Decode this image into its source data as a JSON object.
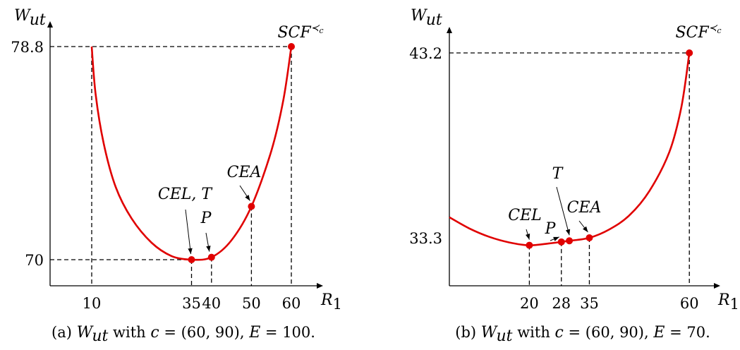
{
  "chart_data": [
    {
      "type": "line",
      "caption": "(a) W_ut with c = (60, 90), E = 100.",
      "ylabel": "W_ut",
      "xlabel": "R_1",
      "x_ticks": [
        "10",
        "35",
        "40",
        "50",
        "60"
      ],
      "y_ticks": [
        "70",
        "78.8"
      ],
      "series": [
        {
          "x": [
            10,
            11,
            13,
            16,
            20,
            25,
            30,
            35,
            40,
            45,
            50,
            55,
            58,
            60
          ],
          "y": [
            78.8,
            76.8,
            74.8,
            73.0,
            71.7,
            70.7,
            70.15,
            70.0,
            70.1,
            70.8,
            72.2,
            74.5,
            76.6,
            78.8
          ]
        }
      ],
      "points": [
        {
          "label": "CEL, T",
          "x": 35,
          "y": 70.0
        },
        {
          "label": "P",
          "x": 40,
          "y": 70.1
        },
        {
          "label": "CEA",
          "x": 50,
          "y": 72.2
        },
        {
          "label": "SCF≺c",
          "x": 60,
          "y": 78.8
        }
      ]
    },
    {
      "type": "line",
      "caption": "(b) W_ut with c = (60, 90), E = 70.",
      "ylabel": "W_ut",
      "xlabel": "R_1",
      "x_ticks": [
        "20",
        "28",
        "35",
        "60"
      ],
      "y_ticks": [
        "33.3",
        "43.2"
      ],
      "series": [
        {
          "x": [
            0,
            5,
            10,
            15,
            20,
            25,
            28,
            30,
            35,
            40,
            45,
            50,
            55,
            58,
            60
          ],
          "y": [
            34.4,
            33.8,
            33.35,
            33.05,
            32.9,
            33.0,
            33.08,
            33.14,
            33.3,
            33.75,
            34.5,
            35.8,
            37.9,
            40.3,
            43.2
          ]
        }
      ],
      "points": [
        {
          "label": "CEL",
          "x": 20,
          "y": 32.9
        },
        {
          "label": "P",
          "x": 28,
          "y": 33.08
        },
        {
          "label": "T",
          "x": 30,
          "y": 33.14
        },
        {
          "label": "CEA",
          "x": 35,
          "y": 33.3
        },
        {
          "label": "SCF≺c",
          "x": 60,
          "y": 43.2
        }
      ]
    }
  ]
}
